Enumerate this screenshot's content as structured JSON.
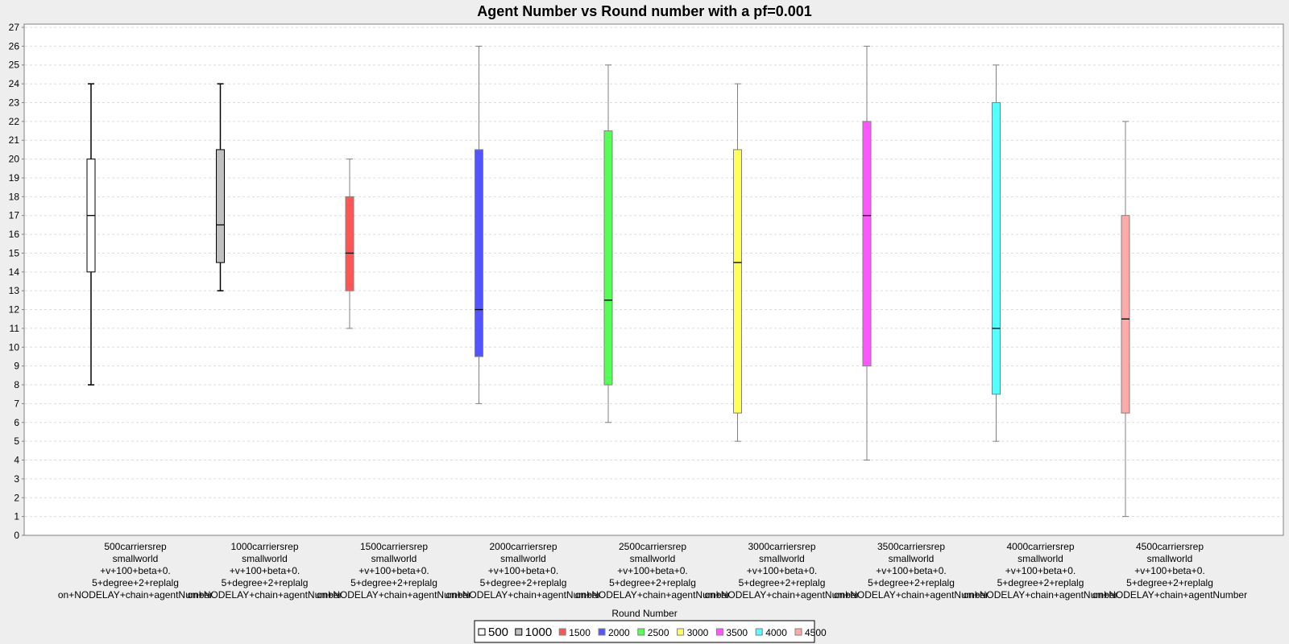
{
  "chart_data": {
    "type": "box",
    "title": "Agent Number vs Round number with a pf=0.001",
    "xlabel": "Round Number",
    "ylabel": "",
    "ylim": [
      0,
      27
    ],
    "yticks": [
      0,
      1,
      2,
      3,
      4,
      5,
      6,
      7,
      8,
      9,
      10,
      11,
      12,
      13,
      14,
      15,
      16,
      17,
      18,
      19,
      20,
      21,
      22,
      23,
      24,
      25,
      26,
      27
    ],
    "grid": true,
    "legend_position": "bottom",
    "categories": [
      [
        "500carriersrep",
        "smallworld",
        "+v+100+beta+0.",
        "5+degree+2+replalg",
        "on+NODELAY+chain+agentNumber"
      ],
      [
        "1000carriersrep",
        "smallworld",
        "+v+100+beta+0.",
        "5+degree+2+replalg",
        "on+NODELAY+chain+agentNumber"
      ],
      [
        "1500carriersrep",
        "smallworld",
        "+v+100+beta+0.",
        "5+degree+2+replalg",
        "on+NODELAY+chain+agentNumber"
      ],
      [
        "2000carriersrep",
        "smallworld",
        "+v+100+beta+0.",
        "5+degree+2+replalg",
        "on+NODELAY+chain+agentNumber"
      ],
      [
        "2500carriersrep",
        "smallworld",
        "+v+100+beta+0.",
        "5+degree+2+replalg",
        "on+NODELAY+chain+agentNumber"
      ],
      [
        "3000carriersrep",
        "smallworld",
        "+v+100+beta+0.",
        "5+degree+2+replalg",
        "on+NODELAY+chain+agentNumber"
      ],
      [
        "3500carriersrep",
        "smallworld",
        "+v+100+beta+0.",
        "5+degree+2+replalg",
        "on+NODELAY+chain+agentNumber"
      ],
      [
        "4000carriersrep",
        "smallworld",
        "+v+100+beta+0.",
        "5+degree+2+replalg",
        "on+NODELAY+chain+agentNumber"
      ],
      [
        "4500carriersrep",
        "smallworld",
        "+v+100+beta+0.",
        "5+degree+2+replalg",
        "on+NODELAY+chain+agentNumber"
      ]
    ],
    "series": [
      {
        "name": "500",
        "color": "#ffffff",
        "min": 8,
        "q1": 14,
        "median": 17,
        "q3": 20,
        "max": 24
      },
      {
        "name": "1000",
        "color": "#c0c0c0",
        "min": 13,
        "q1": 14.5,
        "median": 16.5,
        "q3": 20.5,
        "max": 24
      },
      {
        "name": "1500",
        "color": "#ff5555",
        "min": 11,
        "q1": 13,
        "median": 15,
        "q3": 18,
        "max": 20
      },
      {
        "name": "2000",
        "color": "#5555ff",
        "min": 7,
        "q1": 9.5,
        "median": 12,
        "q3": 20.5,
        "max": 26
      },
      {
        "name": "2500",
        "color": "#55ff55",
        "min": 6,
        "q1": 8,
        "median": 12.5,
        "q3": 21.5,
        "max": 25
      },
      {
        "name": "3000",
        "color": "#ffff55",
        "min": 5,
        "q1": 6.5,
        "median": 14.5,
        "q3": 20.5,
        "max": 24
      },
      {
        "name": "3500",
        "color": "#ff55ff",
        "min": 4,
        "q1": 9,
        "median": 17,
        "q3": 22,
        "max": 26
      },
      {
        "name": "4000",
        "color": "#55ffff",
        "min": 5,
        "q1": 7.5,
        "median": 11,
        "q3": 23,
        "max": 25
      },
      {
        "name": "4500",
        "color": "#ffaaaa",
        "min": 1,
        "q1": 6.5,
        "median": 11.5,
        "q3": 17,
        "max": 22
      }
    ]
  }
}
